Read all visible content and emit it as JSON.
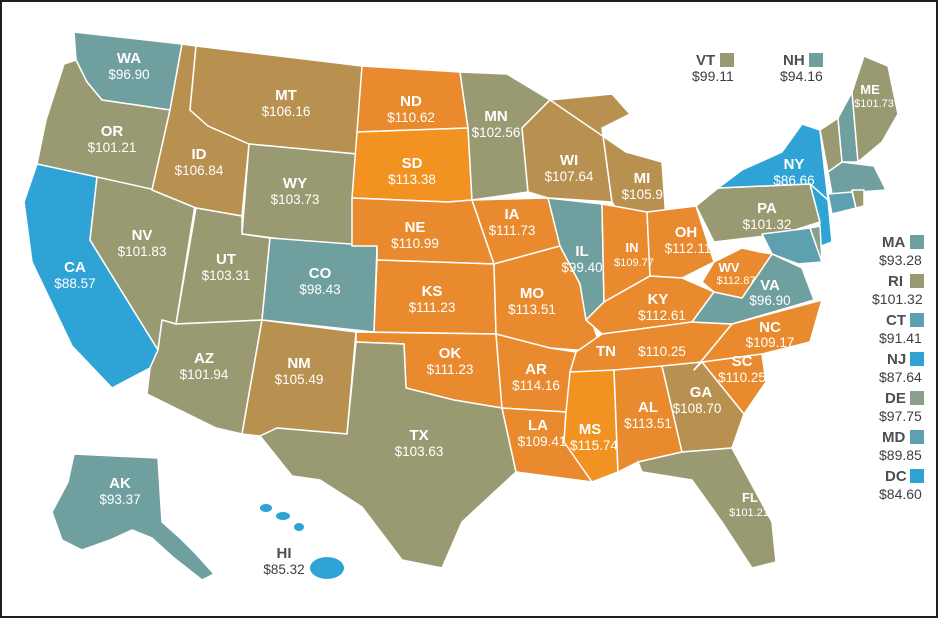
{
  "colors": {
    "lightest_blue": "#2fa3d6",
    "teal": "#6f9f9f",
    "sage": "#9a9a72",
    "tan": "#b8904f",
    "orange": "#e88a2d",
    "bright_orange": "#f29321",
    "border": "#1f1f1f"
  },
  "states": {
    "WA": {
      "abbr": "WA",
      "value": "$96.90"
    },
    "OR": {
      "abbr": "OR",
      "value": "$101.21"
    },
    "CA": {
      "abbr": "CA",
      "value": "$88.57"
    },
    "NV": {
      "abbr": "NV",
      "value": "$101.83"
    },
    "ID": {
      "abbr": "ID",
      "value": "$106.84"
    },
    "MT": {
      "abbr": "MT",
      "value": "$106.16"
    },
    "WY": {
      "abbr": "WY",
      "value": "$103.73"
    },
    "UT": {
      "abbr": "UT",
      "value": "$103.31"
    },
    "AZ": {
      "abbr": "AZ",
      "value": "$101.94"
    },
    "CO": {
      "abbr": "CO",
      "value": "$98.43"
    },
    "NM": {
      "abbr": "NM",
      "value": "$105.49"
    },
    "ND": {
      "abbr": "ND",
      "value": "$110.62"
    },
    "SD": {
      "abbr": "SD",
      "value": "$113.38"
    },
    "NE": {
      "abbr": "NE",
      "value": "$110.99"
    },
    "KS": {
      "abbr": "KS",
      "value": "$111.23"
    },
    "OK": {
      "abbr": "OK",
      "value": "$111.23"
    },
    "TX": {
      "abbr": "TX",
      "value": "$103.63"
    },
    "MN": {
      "abbr": "MN",
      "value": "$102.56"
    },
    "IA": {
      "abbr": "IA",
      "value": "$111.73"
    },
    "MO": {
      "abbr": "MO",
      "value": "$113.51"
    },
    "AR": {
      "abbr": "AR",
      "value": "$114.16"
    },
    "LA": {
      "abbr": "LA",
      "value": "$109.41"
    },
    "WI": {
      "abbr": "WI",
      "value": "$107.64"
    },
    "IL": {
      "abbr": "IL",
      "value": "$99.40"
    },
    "MI": {
      "abbr": "MI",
      "value": "$105.93"
    },
    "IN": {
      "abbr": "IN",
      "value": "$109.77"
    },
    "OH": {
      "abbr": "OH",
      "value": "$112.11"
    },
    "KY": {
      "abbr": "KY",
      "value": "$112.61"
    },
    "TN": {
      "abbr": "TN",
      "value": "$110.25"
    },
    "MS": {
      "abbr": "MS",
      "value": "$115.74"
    },
    "AL": {
      "abbr": "AL",
      "value": "$113.51"
    },
    "GA": {
      "abbr": "GA",
      "value": "$108.70"
    },
    "FL": {
      "abbr": "FL",
      "value": "$101.21"
    },
    "SC": {
      "abbr": "SC",
      "value": "$110.25"
    },
    "NC": {
      "abbr": "NC",
      "value": "$109.17"
    },
    "VA": {
      "abbr": "VA",
      "value": "$96.90"
    },
    "WV": {
      "abbr": "WV",
      "value": "$112.87"
    },
    "PA": {
      "abbr": "PA",
      "value": "$101.32"
    },
    "NY": {
      "abbr": "NY",
      "value": "$86.66"
    },
    "ME": {
      "abbr": "ME",
      "value": "$101.73"
    },
    "AK": {
      "abbr": "AK",
      "value": "$93.37"
    },
    "HI": {
      "abbr": "HI",
      "value": "$85.32"
    }
  },
  "callouts": [
    {
      "abbr": "VT",
      "value": "$99.11",
      "color": "#9a9a72"
    },
    {
      "abbr": "NH",
      "value": "$94.16",
      "color": "#6f9f9f"
    }
  ],
  "legend": [
    {
      "abbr": "MA",
      "value": "$93.28",
      "color": "#6f9f9f"
    },
    {
      "abbr": "RI",
      "value": "$101.32",
      "color": "#9a9a72"
    },
    {
      "abbr": "CT",
      "value": "$91.41",
      "color": "#5e9fb0"
    },
    {
      "abbr": "NJ",
      "value": "$87.64",
      "color": "#2fa3d6"
    },
    {
      "abbr": "DE",
      "value": "$97.75",
      "color": "#8a9f8c"
    },
    {
      "abbr": "MD",
      "value": "$89.85",
      "color": "#5e9fb0"
    },
    {
      "abbr": "DC",
      "value": "$84.60",
      "color": "#2fa3d6"
    }
  ]
}
